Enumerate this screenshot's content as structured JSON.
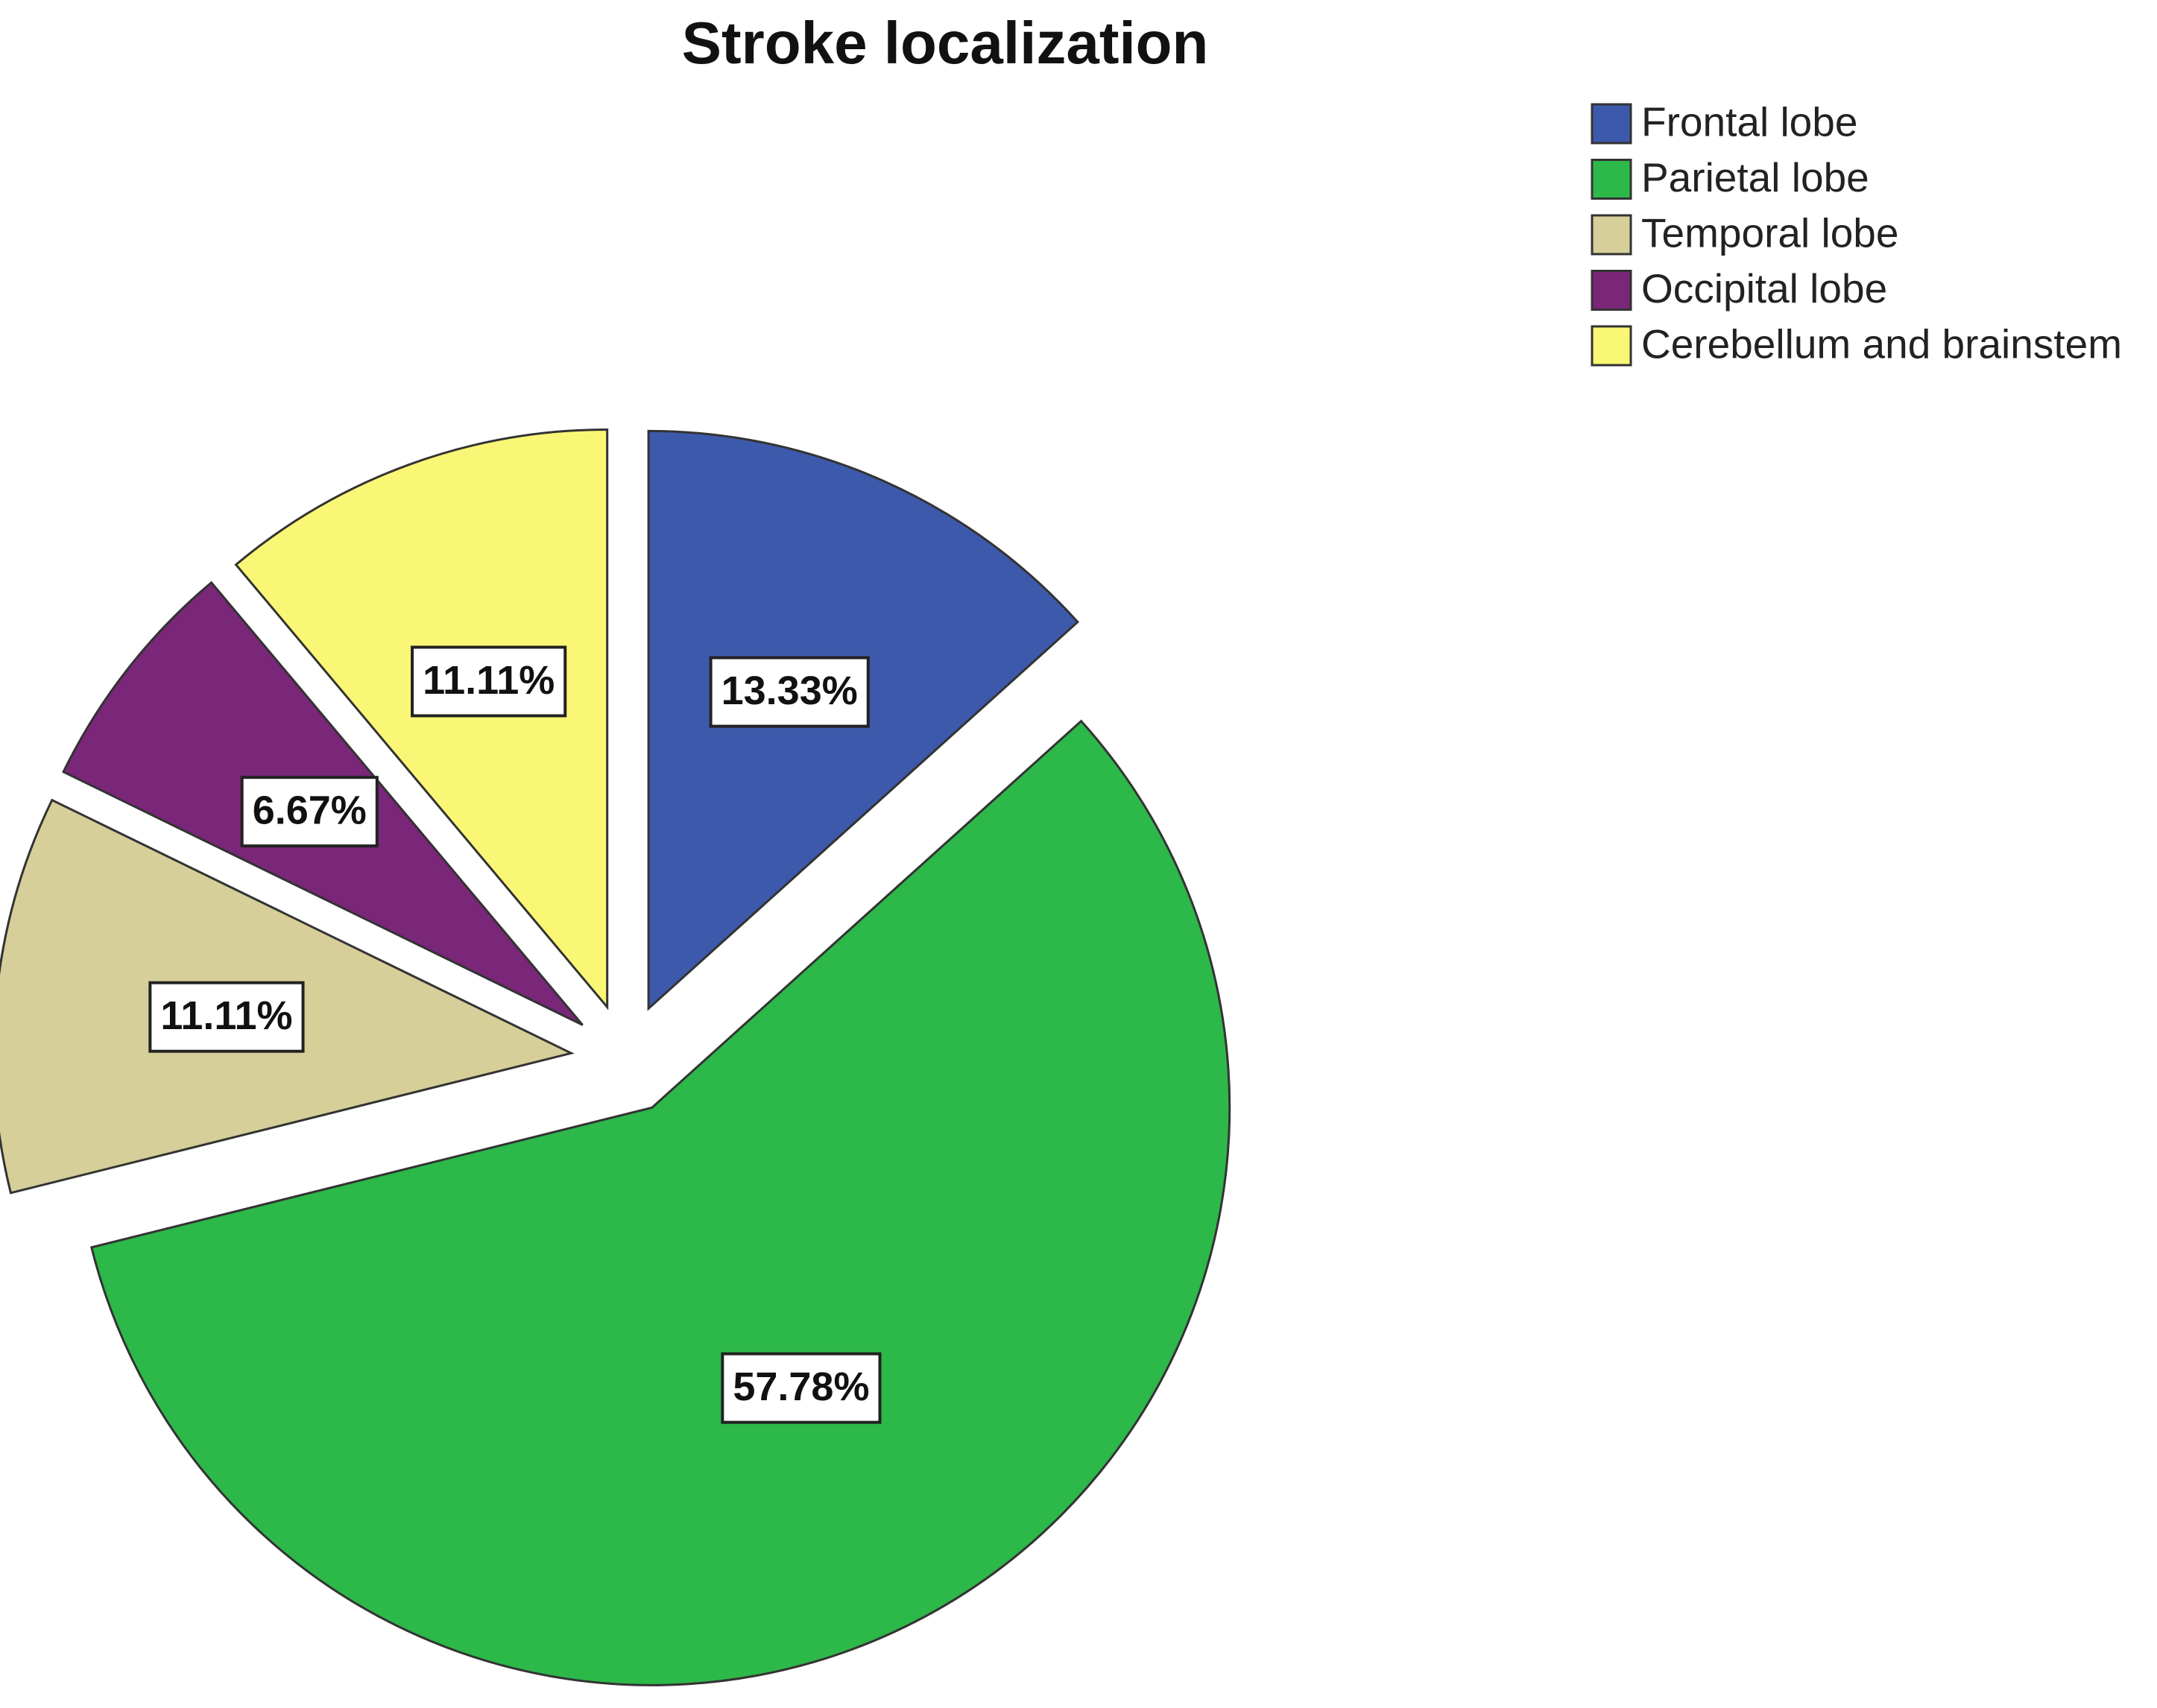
{
  "chart_data": {
    "type": "pie",
    "title": "Stroke localization",
    "categories": [
      "Frontal lobe",
      "Parietal lobe",
      "Temporal lobe",
      "Occipital lobe",
      "Cerebellum and brainstem"
    ],
    "values": [
      13.33,
      57.78,
      11.11,
      6.67,
      11.11
    ],
    "value_labels": [
      "13.33%",
      "57.78%",
      "11.11%",
      "6.67%",
      "11.11%"
    ],
    "colors": [
      "#3d59ab",
      "#2db84a",
      "#d6cf9a",
      "#7a2679",
      "#fbf776"
    ],
    "legend": "top-right"
  }
}
